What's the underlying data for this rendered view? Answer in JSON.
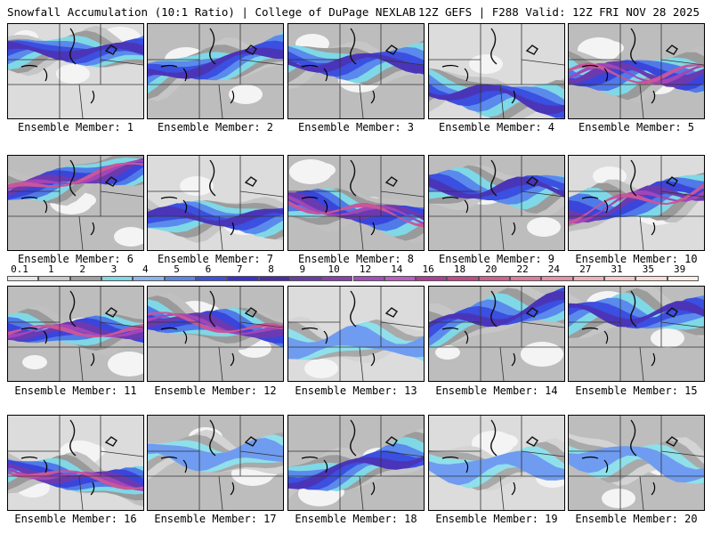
{
  "header": {
    "left": "Snowfall Accumulation (10:1 Ratio) | College of DuPage NEXLAB",
    "right": "12Z GEFS | F288 Valid: 12Z FRI NOV 28 2025"
  },
  "members": [
    {
      "label": "Ensemble Member: 1",
      "intensity": "moderate"
    },
    {
      "label": "Ensemble Member: 2",
      "intensity": "moderate"
    },
    {
      "label": "Ensemble Member: 3",
      "intensity": "moderate"
    },
    {
      "label": "Ensemble Member: 4",
      "intensity": "moderate"
    },
    {
      "label": "Ensemble Member: 5",
      "intensity": "heavy"
    },
    {
      "label": "Ensemble Member: 6",
      "intensity": "heavy"
    },
    {
      "label": "Ensemble Member: 7",
      "intensity": "moderate"
    },
    {
      "label": "Ensemble Member: 8",
      "intensity": "heavy"
    },
    {
      "label": "Ensemble Member: 9",
      "intensity": "moderate"
    },
    {
      "label": "Ensemble Member: 10",
      "intensity": "heavy"
    },
    {
      "label": "Ensemble Member: 11",
      "intensity": "heavy"
    },
    {
      "label": "Ensemble Member: 12",
      "intensity": "heavy"
    },
    {
      "label": "Ensemble Member: 13",
      "intensity": "light"
    },
    {
      "label": "Ensemble Member: 14",
      "intensity": "moderate"
    },
    {
      "label": "Ensemble Member: 15",
      "intensity": "moderate"
    },
    {
      "label": "Ensemble Member: 16",
      "intensity": "heavy"
    },
    {
      "label": "Ensemble Member: 17",
      "intensity": "light"
    },
    {
      "label": "Ensemble Member: 18",
      "intensity": "moderate"
    },
    {
      "label": "Ensemble Member: 19",
      "intensity": "light"
    },
    {
      "label": "Ensemble Member: 20",
      "intensity": "light"
    }
  ],
  "colorbar": {
    "labels": [
      "0.1",
      "1",
      "2",
      "3",
      "4",
      "5",
      "6",
      "7",
      "8",
      "9",
      "10",
      "12",
      "14",
      "16",
      "18",
      "20",
      "22",
      "24",
      "27",
      "31",
      "35",
      "39"
    ],
    "colors": [
      "#e6e6e6",
      "#c8c8c8",
      "#a0a0a0",
      "#7fd8e6",
      "#8ab4f0",
      "#5b86e8",
      "#3c50e0",
      "#3a2fd0",
      "#4b2aa8",
      "#6a3aa8",
      "#8a3fb0",
      "#a84cc0",
      "#c05ac8",
      "#b03c9a",
      "#c04a8a",
      "#d06090",
      "#e07aa0",
      "#e890a8",
      "#f0b0b8",
      "#f6c8c8",
      "#f8ddd8",
      "#fbefe8"
    ]
  }
}
